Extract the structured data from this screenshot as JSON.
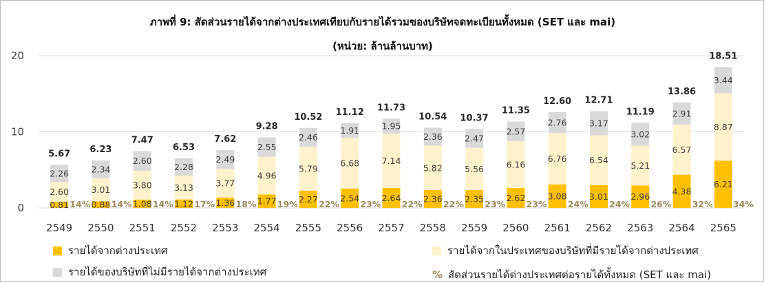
{
  "chart_data": {
    "type": "bar",
    "stacked": true,
    "title": "ภาพที่ 9: สัดส่วนรายได้จากต่างประเทศเทียบกับรายได้รวมของบริษัทจดทะเบียนทั้งหมด (SET และ mai)",
    "subtitle": "(หน่วย: ล้านล้านบาท)",
    "categories": [
      "2549",
      "2550",
      "2551",
      "2552",
      "2553",
      "2554",
      "2555",
      "2556",
      "2557",
      "2558",
      "2559",
      "2560",
      "2561",
      "2562",
      "2563",
      "2564",
      "2565"
    ],
    "ylim": [
      0,
      20
    ],
    "yticks": [
      "0",
      "10",
      "20"
    ],
    "grid": true,
    "series": [
      {
        "name": "รายได้จากต่างประเทศ",
        "color": "#FFC000",
        "values": [
          0.81,
          0.88,
          1.08,
          1.12,
          1.36,
          1.77,
          2.27,
          2.54,
          2.64,
          2.36,
          2.35,
          2.62,
          3.08,
          3.01,
          2.96,
          4.38,
          6.21
        ],
        "labels": [
          "0.81",
          "0.88",
          "1.08",
          "1.12",
          "1.36",
          "1.77",
          "2.27",
          "2.54",
          "2.64",
          "2.36",
          "2.35",
          "2.62",
          "3.08",
          "3.01",
          "2.96",
          "4.38",
          "6.21"
        ]
      },
      {
        "name": "รายได้จากในประเทศของบริษัทที่มีรายได้จากต่างประเทศ",
        "color": "#FFF2CC",
        "values": [
          2.6,
          3.01,
          3.8,
          3.13,
          3.77,
          4.96,
          5.79,
          6.68,
          7.14,
          5.82,
          5.56,
          6.16,
          6.76,
          6.54,
          5.21,
          6.57,
          8.87
        ],
        "labels": [
          "2.60",
          "3.01",
          "3.80",
          "3.13",
          "3.77",
          "4.96",
          "5.79",
          "6.68",
          "7.14",
          "5.82",
          "5.56",
          "6.16",
          "6.76",
          "6.54",
          "5.21",
          "6.57",
          "8.87"
        ]
      },
      {
        "name": "รายได้ของบริษัทที่ไม่มีรายได้จากต่างประเทศ",
        "color": "#D9D9D9",
        "values": [
          2.26,
          2.34,
          2.6,
          2.28,
          2.49,
          2.55,
          2.46,
          1.91,
          1.95,
          2.36,
          2.47,
          2.57,
          2.76,
          3.17,
          3.02,
          2.91,
          3.44
        ],
        "labels": [
          "2.26",
          "2.34",
          "2.60",
          "2.28",
          "2.49",
          "2.55",
          "2.46",
          "1.91",
          "1.95",
          "2.36",
          "2.47",
          "2.57",
          "2.76",
          "3.17",
          "3.02",
          "2.91",
          "3.44"
        ]
      }
    ],
    "totals": [
      "5.67",
      "6.23",
      "7.47",
      "6.53",
      "7.62",
      "9.28",
      "10.52",
      "11.12",
      "11.73",
      "10.54",
      "10.37",
      "11.35",
      "12.60",
      "12.71",
      "11.19",
      "13.86",
      "18.51"
    ],
    "share_series": {
      "name": "สัดส่วนรายได้ต่างประเทศต่อรายได้ทั้งหมด (SET และ mai)",
      "symbol": "%",
      "color": "#9C8A57",
      "labels": [
        "14%",
        "14%",
        "14%",
        "17%",
        "18%",
        "19%",
        "22%",
        "23%",
        "22%",
        "22%",
        "23%",
        "23%",
        "24%",
        "24%",
        "26%",
        "32%",
        "34%"
      ]
    }
  }
}
